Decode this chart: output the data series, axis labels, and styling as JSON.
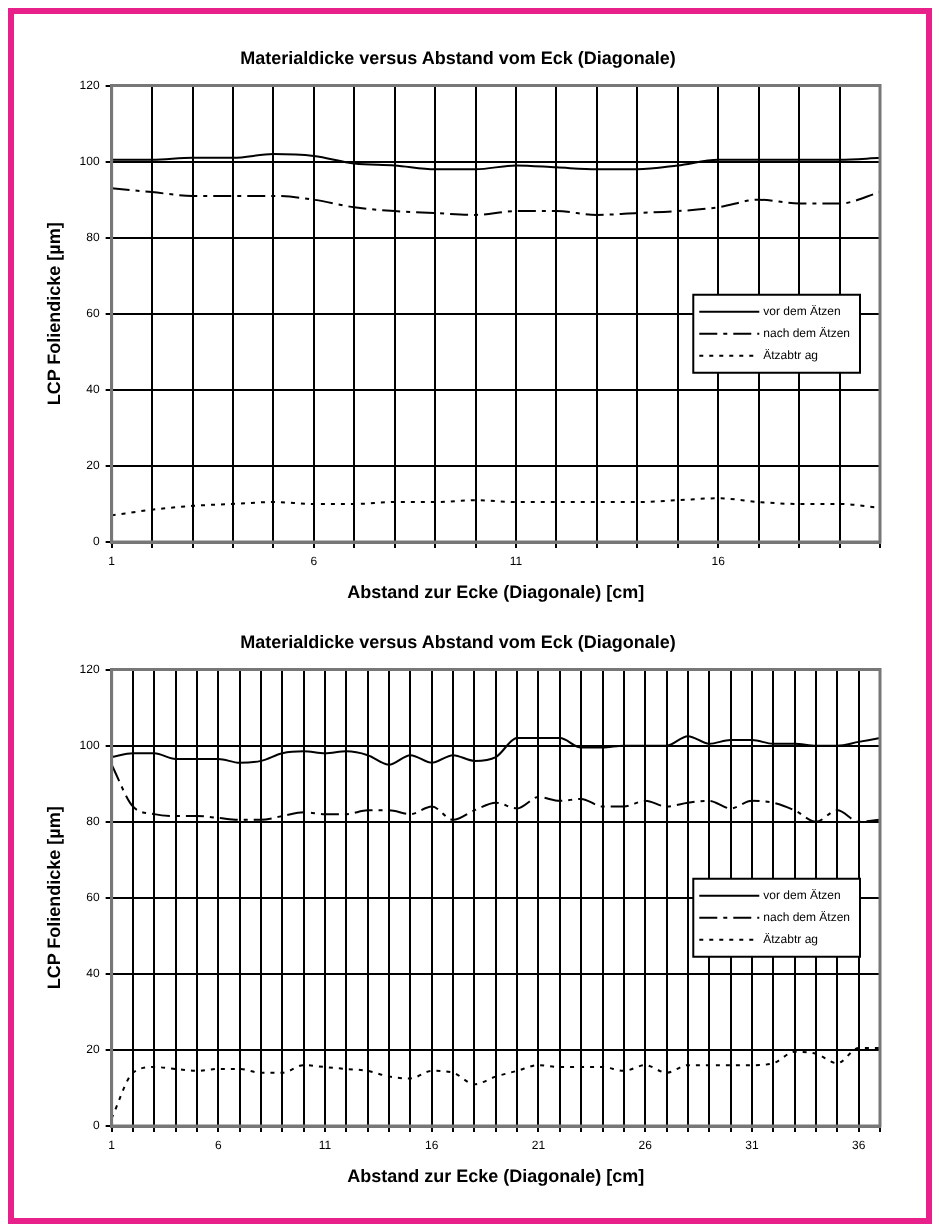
{
  "chart_data": [
    {
      "type": "line",
      "title": "Materialdicke versus Abstand vom Eck (Diagonale)",
      "xlabel": "Abstand zur Ecke (Diagonale) [cm]",
      "ylabel": "LCP Foliendicke [µm]",
      "categories": [
        "1",
        null,
        null,
        null,
        null,
        "6",
        null,
        null,
        null,
        null,
        "11",
        null,
        null,
        null,
        null,
        "16",
        null,
        null,
        null,
        null
      ],
      "series": [
        {
          "name": "vor dem Ätzen",
          "color": "#000000",
          "line_style": "solid",
          "values": [
            100.5,
            100.5,
            101,
            101,
            102,
            101.5,
            99.5,
            99,
            98,
            98,
            99,
            98.5,
            98,
            98,
            99,
            100.5,
            100.5,
            100.5,
            100.5,
            101
          ]
        },
        {
          "name": "nach dem Ätzen",
          "color": "#000000",
          "line_style": "dashed",
          "values": [
            93,
            92,
            91,
            91,
            91,
            90,
            88,
            87,
            86.5,
            86,
            87,
            87,
            86,
            86.5,
            87,
            88,
            90,
            89,
            89,
            92
          ]
        },
        {
          "name": "Ätzabtr ag",
          "color": "#000000",
          "line_style": "dotted",
          "values": [
            7,
            8.5,
            9.5,
            10,
            10.5,
            10,
            10,
            10.5,
            10.5,
            11,
            10.5,
            10.5,
            10.5,
            10.5,
            11,
            11.5,
            10.5,
            10,
            10,
            9
          ]
        }
      ],
      "ylim": [
        0,
        120
      ],
      "yticks": [
        0,
        20,
        40,
        60,
        80,
        100,
        120
      ],
      "grid": true,
      "legend": "right",
      "marker": "none"
    },
    {
      "type": "line",
      "title": "Materialdicke versus Abstand vom Eck (Diagonale)",
      "xlabel": "Abstand zur Ecke (Diagonale) [cm]",
      "ylabel": "LCP Foliendicke [µm]",
      "categories": [
        "1",
        null,
        null,
        null,
        null,
        "6",
        null,
        null,
        null,
        null,
        "11",
        null,
        null,
        null,
        null,
        "16",
        null,
        null,
        null,
        null,
        "21",
        null,
        null,
        null,
        null,
        "26",
        null,
        null,
        null,
        null,
        "31",
        null,
        null,
        null,
        null,
        "36",
        null
      ],
      "series": [
        {
          "name": "vor dem Ätzen",
          "color": "#000000",
          "line_style": "solid",
          "values": [
            97,
            98,
            98,
            96.5,
            96.5,
            96.5,
            95.5,
            96,
            98,
            98.5,
            98,
            98.5,
            97.5,
            95,
            97.5,
            95.5,
            97.5,
            96,
            97,
            102,
            102,
            102,
            99.5,
            99.5,
            100,
            100,
            100,
            102.5,
            100.5,
            101.5,
            101.5,
            100.5,
            100.5,
            100,
            100,
            101,
            102
          ]
        },
        {
          "name": "nach dem Ätzen",
          "color": "#000000",
          "line_style": "dashed",
          "values": [
            95,
            84,
            82,
            81.5,
            81.5,
            81,
            80.5,
            80.5,
            81.5,
            82.5,
            82,
            82,
            83,
            83,
            82,
            84,
            80.5,
            83,
            85,
            83.5,
            86.5,
            85.5,
            86,
            84,
            84,
            85.5,
            84,
            85,
            85.5,
            83.5,
            85.5,
            85,
            83,
            80,
            83,
            80,
            80.5
          ]
        },
        {
          "name": "Ätzabtr ag",
          "color": "#000000",
          "line_style": "dotted",
          "values": [
            2,
            14,
            15.5,
            15,
            14.5,
            15,
            15,
            14,
            14,
            16,
            15.5,
            15,
            14.5,
            13,
            12.5,
            14.5,
            14,
            11,
            13,
            14.5,
            16,
            15.5,
            15.5,
            15.5,
            14.5,
            16,
            14,
            16,
            16,
            16,
            16,
            16.5,
            19.5,
            19,
            16.5,
            20.5,
            20.5
          ]
        }
      ],
      "ylim": [
        0,
        120
      ],
      "yticks": [
        0,
        20,
        40,
        60,
        80,
        100,
        120
      ],
      "grid": true,
      "legend": "right",
      "marker": "none"
    }
  ]
}
